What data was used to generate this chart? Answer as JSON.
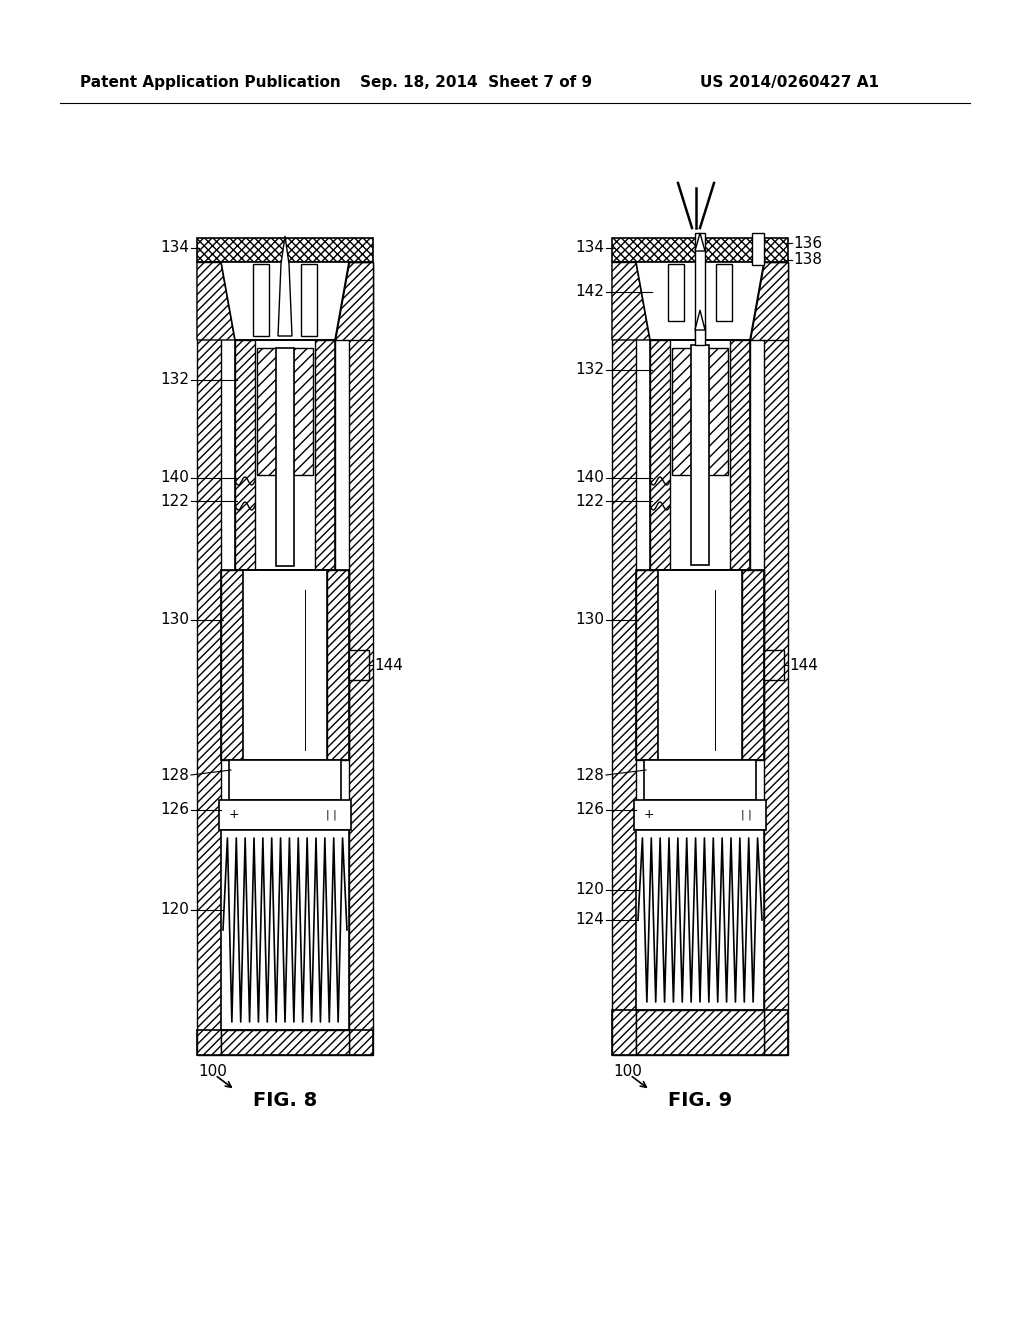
{
  "title_left": "Patent Application Publication",
  "title_center": "Sep. 18, 2014  Sheet 7 of 9",
  "title_right": "US 2014/0260427 A1",
  "fig8_label": "FIG. 8",
  "fig9_label": "FIG. 9",
  "background": "#ffffff"
}
